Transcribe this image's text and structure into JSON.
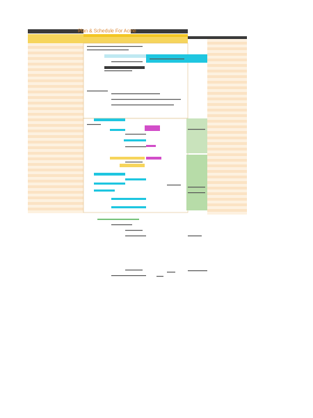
{
  "header": {
    "title": "Plan & Schedule For Acme"
  }
}
